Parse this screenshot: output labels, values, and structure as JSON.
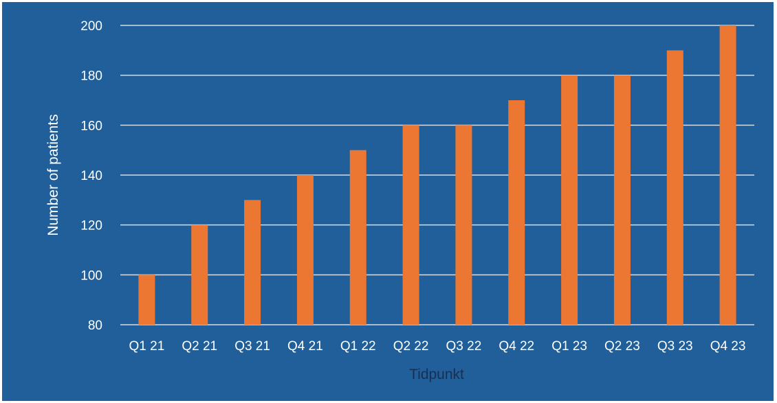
{
  "chart_data": {
    "type": "bar",
    "title": "",
    "xlabel": "Tidpunkt",
    "ylabel": "Number of  patients",
    "categories": [
      "Q1 21",
      "Q2 21",
      "Q3 21",
      "Q4 21",
      "Q1 22",
      "Q2 22",
      "Q3 22",
      "Q4 22",
      "Q1 23",
      "Q2 23",
      "Q3 23",
      "Q4 23"
    ],
    "values": [
      100,
      120,
      130,
      140,
      150,
      160,
      160,
      170,
      180,
      180,
      190,
      200
    ],
    "ylim": [
      80,
      200
    ],
    "yticks": [
      80,
      100,
      120,
      140,
      160,
      180,
      200
    ],
    "grid": true,
    "legend": "none",
    "colors": {
      "background": "#215f9a",
      "bar": "#ec7733",
      "grid": "#d6dce6",
      "tick_text": "#ffffff",
      "ylabel_text": "#ffffff",
      "xlabel_text": "#1a2e4f"
    }
  }
}
